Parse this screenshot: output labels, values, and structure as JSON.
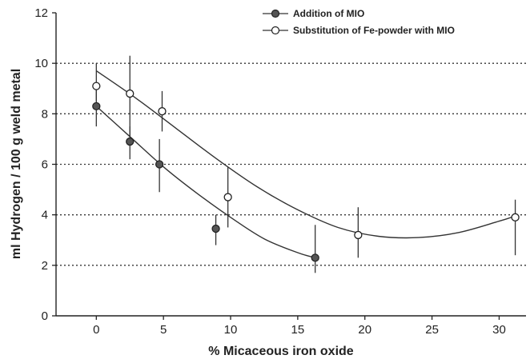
{
  "chart_data": {
    "type": "scatter",
    "xlabel": "% Micaceous iron oxide",
    "ylabel": "ml Hydrogen / 100 g weld metal",
    "xlim": [
      -3,
      32
    ],
    "ylim": [
      0,
      12
    ],
    "x_ticks": [
      0,
      5,
      10,
      15,
      20,
      25,
      30
    ],
    "y_ticks": [
      0,
      2,
      4,
      6,
      8,
      10,
      12
    ],
    "grid": "horizontal dotted at y = 2, 4, 6, 8, 10",
    "legend_position": "top-right",
    "series": [
      {
        "name": "Addition of MIO",
        "marker": "filled-circle",
        "color": "#555555",
        "x": [
          0,
          2.5,
          4.7,
          8.9,
          16.3
        ],
        "y": [
          8.3,
          6.9,
          6.0,
          3.45,
          2.3
        ],
        "error_low": [
          7.5,
          6.2,
          4.9,
          2.8,
          1.7
        ],
        "error_high": [
          9.0,
          7.5,
          7.0,
          4.0,
          3.6
        ],
        "fit_curve": {
          "x": [
            0,
            2.5,
            5,
            7.5,
            10,
            12.5,
            15,
            16.3
          ],
          "y": [
            8.3,
            7.1,
            5.9,
            4.85,
            3.9,
            3.05,
            2.5,
            2.3
          ]
        }
      },
      {
        "name": "Substitution of Fe-powder with MIO",
        "marker": "open-circle",
        "color": "#ffffff",
        "x": [
          0,
          2.5,
          4.9,
          9.8,
          19.5,
          31.2
        ],
        "y": [
          9.1,
          8.8,
          8.1,
          4.7,
          3.2,
          3.9
        ],
        "error_low": [
          8.5,
          6.8,
          7.3,
          3.5,
          2.3,
          2.4
        ],
        "error_high": [
          10.0,
          10.3,
          8.9,
          5.9,
          4.3,
          4.6
        ],
        "fit_curve": {
          "x": [
            0,
            3,
            6,
            9,
            12,
            15,
            18,
            21,
            24,
            27,
            30,
            31.2
          ],
          "y": [
            9.7,
            8.6,
            7.4,
            6.2,
            5.1,
            4.2,
            3.5,
            3.15,
            3.1,
            3.3,
            3.75,
            3.95
          ]
        }
      }
    ]
  }
}
